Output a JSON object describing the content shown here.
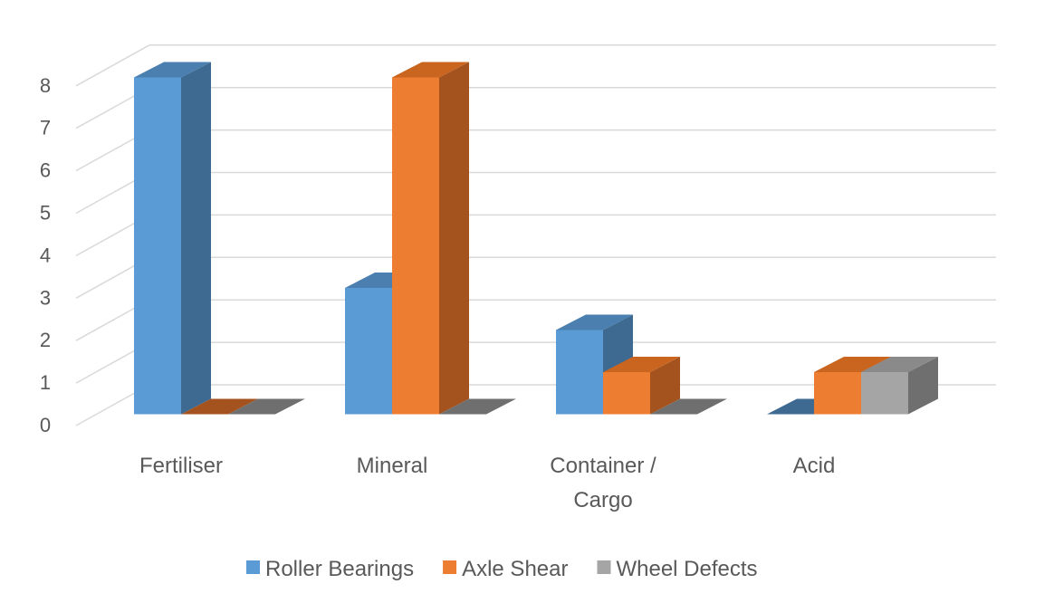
{
  "chart_data": {
    "type": "bar",
    "title": "",
    "xlabel": "",
    "ylabel": "",
    "ylim": [
      0,
      8
    ],
    "yticks": [
      "0",
      "1",
      "2",
      "3",
      "4",
      "5",
      "6",
      "7",
      "8"
    ],
    "grid": true,
    "legend_position": "bottom",
    "categories": [
      [
        "Fertiliser"
      ],
      [
        "Mineral"
      ],
      [
        "Container /",
        "Cargo"
      ],
      [
        "Acid"
      ]
    ],
    "series": [
      {
        "name": "Roller Bearings",
        "color": "#5B9BD5",
        "side": "#3E6A92",
        "top": "#4A7FB0",
        "values": [
          8,
          3,
          2,
          0
        ]
      },
      {
        "name": "Axle Shear",
        "color": "#ED7D31",
        "side": "#A4531E",
        "top": "#C9651F",
        "values": [
          0,
          8,
          1,
          1
        ]
      },
      {
        "name": "Wheel Defects",
        "color": "#A5A5A5",
        "side": "#6F6F6F",
        "top": "#8A8A8A",
        "values": [
          0,
          0,
          0,
          1
        ]
      }
    ]
  }
}
